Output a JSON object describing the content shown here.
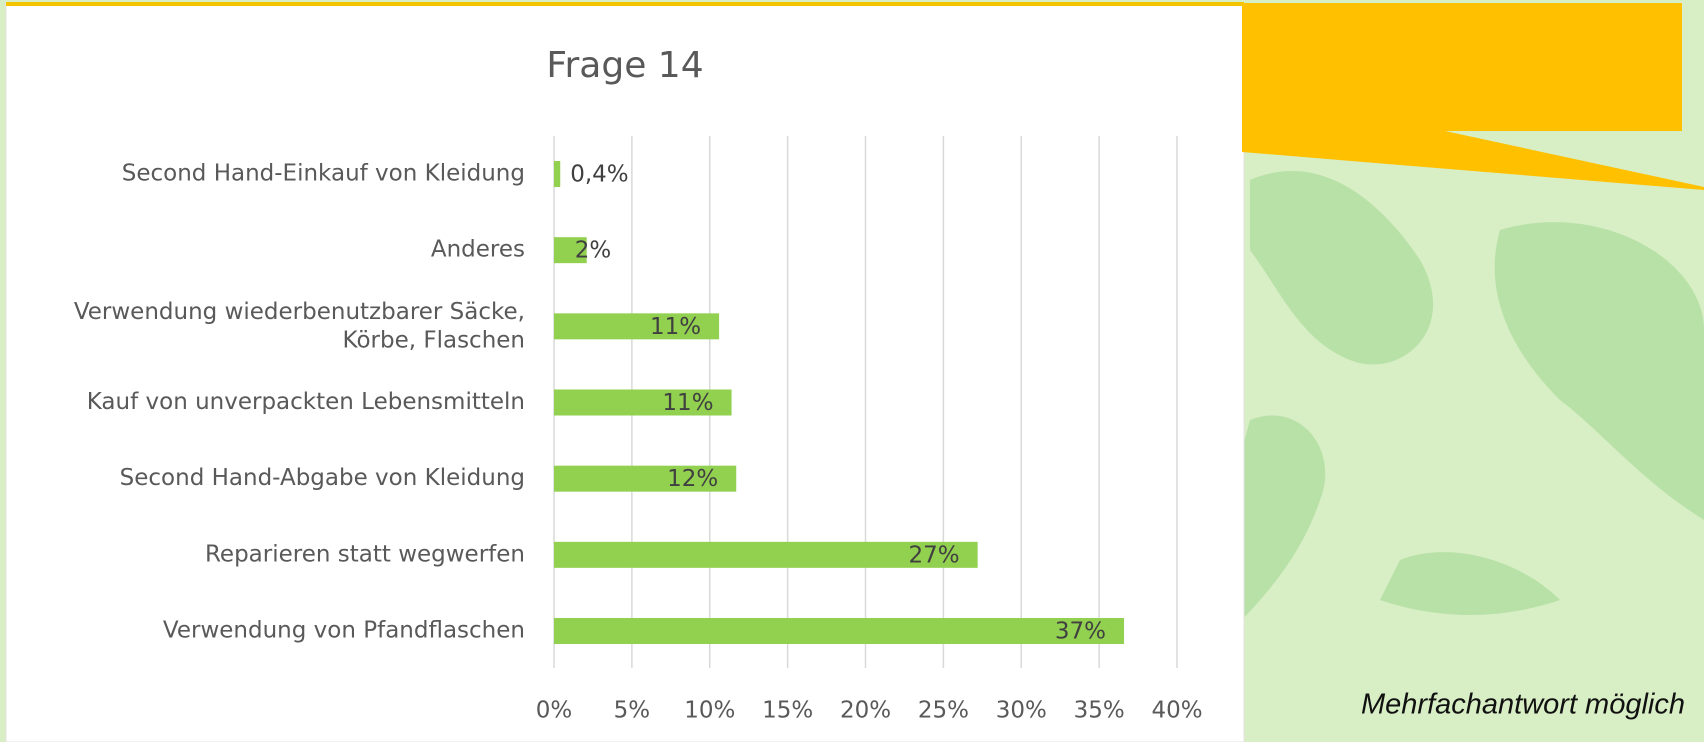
{
  "chart_data": {
    "type": "bar",
    "orientation": "horizontal",
    "title": "Frage 14",
    "categories": [
      "Second Hand-Einkauf von Kleidung",
      "Anderes",
      "Verwendung wiederbenutzbarer Säcke,\nKörbe, Flaschen",
      "Kauf von unverpackten Lebensmitteln",
      "Second Hand-Abgabe von Kleidung",
      "Reparieren statt wegwerfen",
      "Verwendung von Pfandflaschen"
    ],
    "values": [
      0.4,
      2.1,
      10.6,
      11.4,
      11.7,
      27.2,
      36.6
    ],
    "value_labels": [
      "0,4%",
      "2%",
      "11%",
      "11%",
      "12%",
      "27%",
      "37%"
    ],
    "color": "#92d050",
    "xlim": [
      0,
      40
    ],
    "xticks": [
      {
        "value": 0,
        "label": "0%"
      },
      {
        "value": 5,
        "label": "5%"
      },
      {
        "value": 10,
        "label": "10%"
      },
      {
        "value": 15,
        "label": "15%"
      },
      {
        "value": 20,
        "label": "20%"
      },
      {
        "value": 25,
        "label": "25%"
      },
      {
        "value": 30,
        "label": "30%"
      },
      {
        "value": 35,
        "label": "35%"
      },
      {
        "value": 40,
        "label": "40%"
      }
    ],
    "grid": true
  },
  "footnote": "Mehrfachantwort möglich"
}
